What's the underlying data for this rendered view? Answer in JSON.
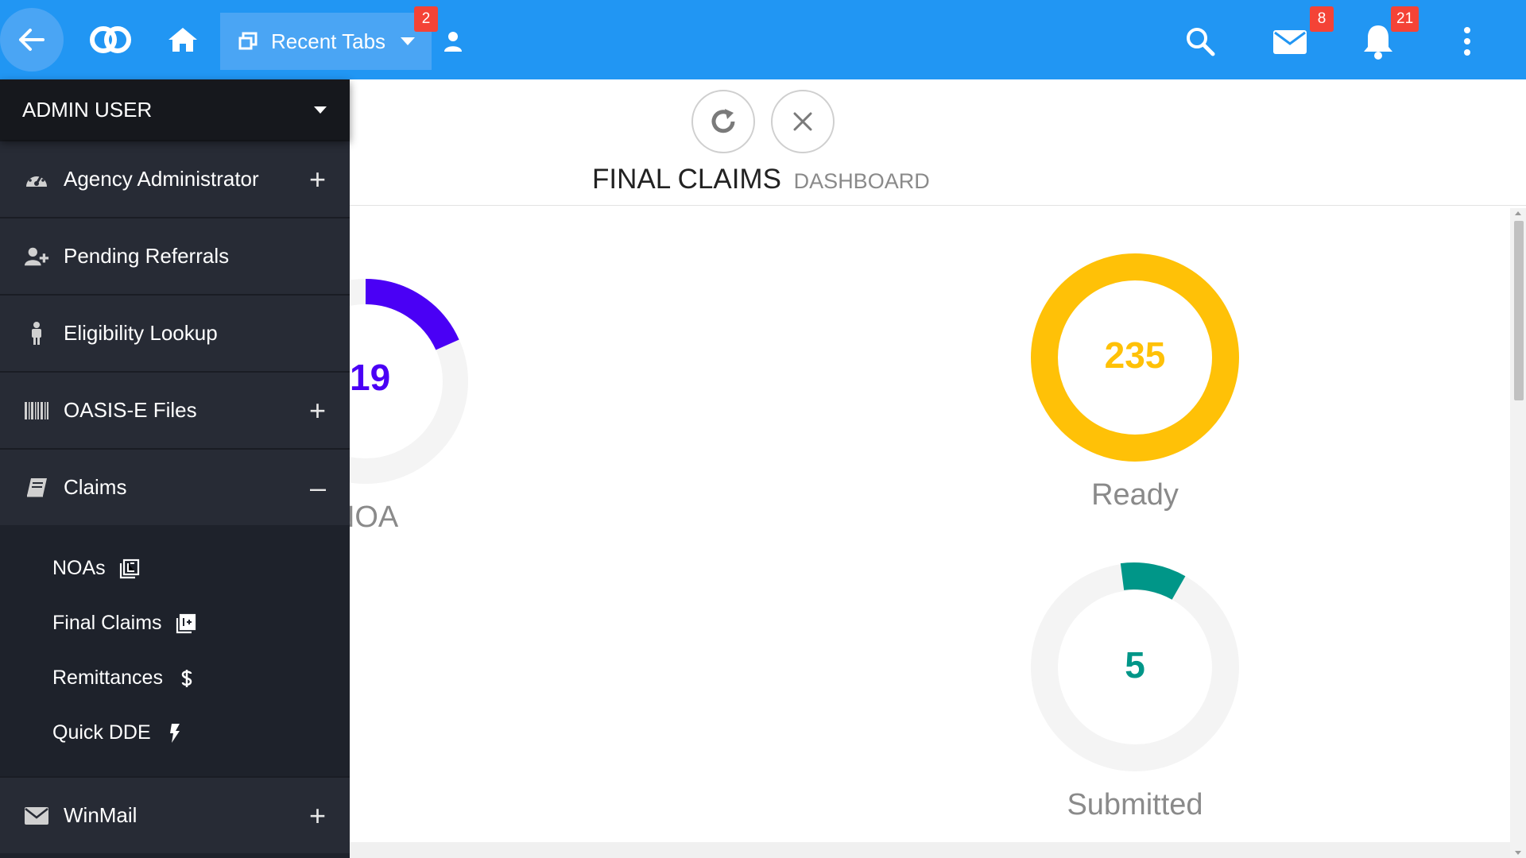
{
  "topbar": {
    "recent_tabs_label": "Recent Tabs",
    "recent_tabs_count": "2",
    "mail_count": "8",
    "notifications_count": "21",
    "accent_color": "#2196f3"
  },
  "sidebar": {
    "user": "ADMIN USER",
    "items": [
      {
        "label": "Agency Administrator",
        "icon": "dashboard-icon",
        "toggle": "+"
      },
      {
        "label": "Pending Referrals",
        "icon": "user-plus-icon",
        "toggle": ""
      },
      {
        "label": "Eligibility Lookup",
        "icon": "person-icon",
        "toggle": ""
      },
      {
        "label": "OASIS-E Files",
        "icon": "barcode-icon",
        "toggle": "+"
      },
      {
        "label": "Claims",
        "icon": "book-icon",
        "toggle": "–"
      },
      {
        "label": "WinMail",
        "icon": "envelope-icon",
        "toggle": "+"
      }
    ],
    "claims_sub": [
      {
        "label": "NOAs",
        "icon": "noa-icon"
      },
      {
        "label": "Final Claims",
        "icon": "final-claims-icon"
      },
      {
        "label": "Remittances",
        "icon": "dollar-icon"
      },
      {
        "label": "Quick DDE",
        "icon": "bolt-icon"
      }
    ]
  },
  "main": {
    "title": "FINAL CLAIMS",
    "subtitle": "DASHBOARD",
    "gauges": [
      {
        "value": "19",
        "label": "ring NOA",
        "color": "#4a00f5"
      },
      {
        "value": "235",
        "label": "Ready",
        "color": "#ffc107"
      },
      {
        "value": "5",
        "label": "Submitted",
        "color": "#009688"
      }
    ]
  }
}
